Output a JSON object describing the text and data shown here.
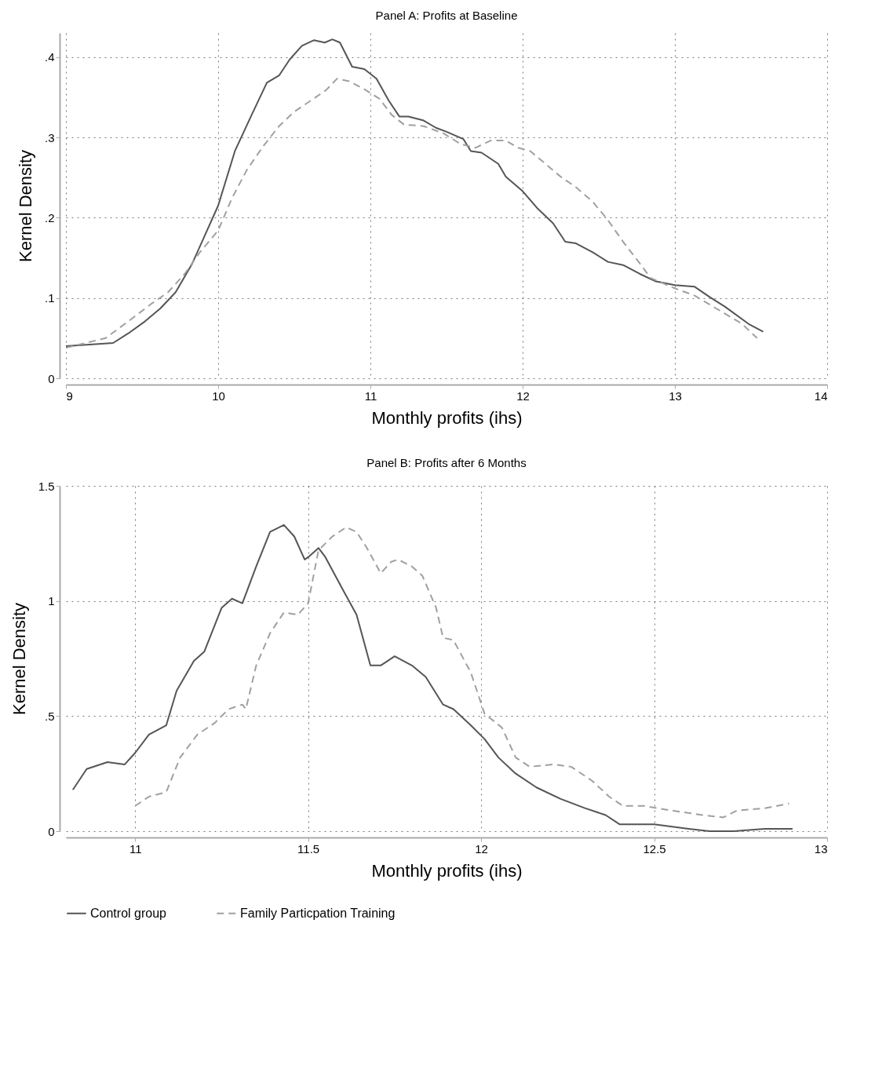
{
  "chart_data": [
    {
      "type": "line",
      "title": "Panel A: Profits at Baseline",
      "xlabel": "Monthly profits (ihs)",
      "ylabel": "Kernel Density",
      "xlim": [
        9,
        14
      ],
      "xticks": [
        9,
        10,
        11,
        12,
        13,
        14
      ],
      "ylim": [
        0,
        0.43
      ],
      "yticks": [
        0,
        {
          "value": 0.1,
          "label": ".1"
        },
        {
          "value": 0.2,
          "label": ".2"
        },
        {
          "value": 0.3,
          "label": ".3"
        },
        {
          "value": 0.4,
          "label": ".4"
        }
      ],
      "grid": true,
      "legend": "bottom",
      "series": [
        {
          "name": "Control group",
          "color": "#555555",
          "line_style": "solid",
          "x": [
            9,
            9.31,
            9.41,
            9.52,
            9.62,
            9.72,
            9.83,
            10.0,
            10.11,
            10.22,
            10.32,
            10.4,
            10.47,
            10.55,
            10.63,
            10.7,
            10.75,
            10.8,
            10.88,
            10.96,
            11.04,
            11.12,
            11.19,
            11.25,
            11.35,
            11.43,
            11.5,
            11.61,
            11.66,
            11.73,
            11.84,
            11.89,
            12.0,
            12.1,
            12.2,
            12.28,
            12.35,
            12.46,
            12.56,
            12.66,
            12.77,
            12.87,
            13.0,
            13.13,
            13.23,
            13.33,
            13.49,
            13.58
          ],
          "values": [
            0.04,
            0.044,
            0.056,
            0.071,
            0.087,
            0.107,
            0.143,
            0.215,
            0.283,
            0.328,
            0.368,
            0.377,
            0.397,
            0.414,
            0.421,
            0.418,
            0.422,
            0.418,
            0.388,
            0.385,
            0.373,
            0.346,
            0.326,
            0.326,
            0.321,
            0.312,
            0.307,
            0.298,
            0.283,
            0.281,
            0.267,
            0.251,
            0.233,
            0.211,
            0.193,
            0.17,
            0.168,
            0.157,
            0.145,
            0.141,
            0.13,
            0.121,
            0.116,
            0.114,
            0.101,
            0.089,
            0.067,
            0.058
          ]
        },
        {
          "name": "Family Particpation Training",
          "color": "#a0a0a0",
          "line_style": "dashed",
          "x": [
            9,
            9.26,
            9.41,
            9.57,
            9.67,
            9.78,
            9.88,
            10.0,
            10.09,
            10.19,
            10.3,
            10.4,
            10.5,
            10.61,
            10.71,
            10.78,
            10.86,
            10.96,
            11.06,
            11.14,
            11.22,
            11.35,
            11.48,
            11.59,
            11.69,
            11.79,
            11.89,
            11.97,
            12.05,
            12.15,
            12.25,
            12.35,
            12.46,
            12.56,
            12.66,
            12.77,
            12.84,
            13.0,
            13.13,
            13.28,
            13.44,
            13.54
          ],
          "values": [
            0.038,
            0.05,
            0.071,
            0.094,
            0.107,
            0.13,
            0.157,
            0.184,
            0.224,
            0.26,
            0.29,
            0.314,
            0.332,
            0.346,
            0.359,
            0.373,
            0.37,
            0.36,
            0.348,
            0.328,
            0.316,
            0.314,
            0.305,
            0.292,
            0.287,
            0.296,
            0.296,
            0.287,
            0.283,
            0.267,
            0.251,
            0.238,
            0.22,
            0.197,
            0.17,
            0.143,
            0.125,
            0.112,
            0.103,
            0.086,
            0.068,
            0.05
          ]
        }
      ]
    },
    {
      "type": "line",
      "title": "Panel B: Profits after 6 Months",
      "xlabel": "Monthly profits (ihs)",
      "ylabel": "Kernel Density",
      "xlim": [
        10.8,
        13
      ],
      "xticks": [
        11,
        11.5,
        12,
        12.5,
        13
      ],
      "ylim": [
        0,
        1.5
      ],
      "yticks": [
        0,
        {
          "value": 0.5,
          "label": ".5"
        },
        1,
        1.5
      ],
      "grid": true,
      "legend": "bottom",
      "series": [
        {
          "name": "Control group",
          "color": "#555555",
          "line_style": "solid",
          "x": [
            10.82,
            10.86,
            10.92,
            10.97,
            11.0,
            11.04,
            11.09,
            11.12,
            11.17,
            11.2,
            11.25,
            11.28,
            11.31,
            11.35,
            11.39,
            11.43,
            11.46,
            11.49,
            11.5,
            11.53,
            11.55,
            11.6,
            11.64,
            11.68,
            11.71,
            11.75,
            11.8,
            11.84,
            11.89,
            11.92,
            11.97,
            12.01,
            12.05,
            12.1,
            12.16,
            12.23,
            12.3,
            12.36,
            12.4,
            12.5,
            12.6,
            12.66,
            12.73,
            12.82,
            12.9
          ],
          "values": [
            0.18,
            0.27,
            0.3,
            0.29,
            0.34,
            0.42,
            0.46,
            0.61,
            0.74,
            0.78,
            0.97,
            1.01,
            0.99,
            1.15,
            1.3,
            1.33,
            1.28,
            1.18,
            1.19,
            1.23,
            1.19,
            1.05,
            0.94,
            0.72,
            0.72,
            0.76,
            0.72,
            0.67,
            0.55,
            0.53,
            0.46,
            0.4,
            0.32,
            0.25,
            0.19,
            0.14,
            0.1,
            0.07,
            0.03,
            0.03,
            0.01,
            0,
            0,
            0.01,
            0.01
          ]
        },
        {
          "name": "Family Particpation Training",
          "color": "#a0a0a0",
          "line_style": "dashed",
          "x": [
            11.0,
            11.04,
            11.09,
            11.13,
            11.18,
            11.23,
            11.27,
            11.31,
            11.32,
            11.35,
            11.39,
            11.43,
            11.47,
            11.5,
            11.53,
            11.57,
            11.61,
            11.64,
            11.67,
            11.71,
            11.74,
            11.76,
            11.8,
            11.83,
            11.87,
            11.89,
            11.92,
            11.97,
            12.01,
            12.06,
            12.1,
            12.14,
            12.21,
            12.26,
            12.32,
            12.37,
            12.41,
            12.47,
            12.55,
            12.64,
            12.7,
            12.74,
            12.82,
            12.89
          ],
          "values": [
            0.11,
            0.15,
            0.17,
            0.32,
            0.42,
            0.47,
            0.53,
            0.55,
            0.53,
            0.72,
            0.86,
            0.95,
            0.94,
            0.99,
            1.22,
            1.28,
            1.32,
            1.3,
            1.23,
            1.12,
            1.17,
            1.18,
            1.15,
            1.11,
            0.97,
            0.84,
            0.83,
            0.69,
            0.51,
            0.45,
            0.32,
            0.28,
            0.29,
            0.28,
            0.22,
            0.15,
            0.11,
            0.11,
            0.09,
            0.07,
            0.06,
            0.09,
            0.1,
            0.12
          ]
        }
      ]
    }
  ]
}
